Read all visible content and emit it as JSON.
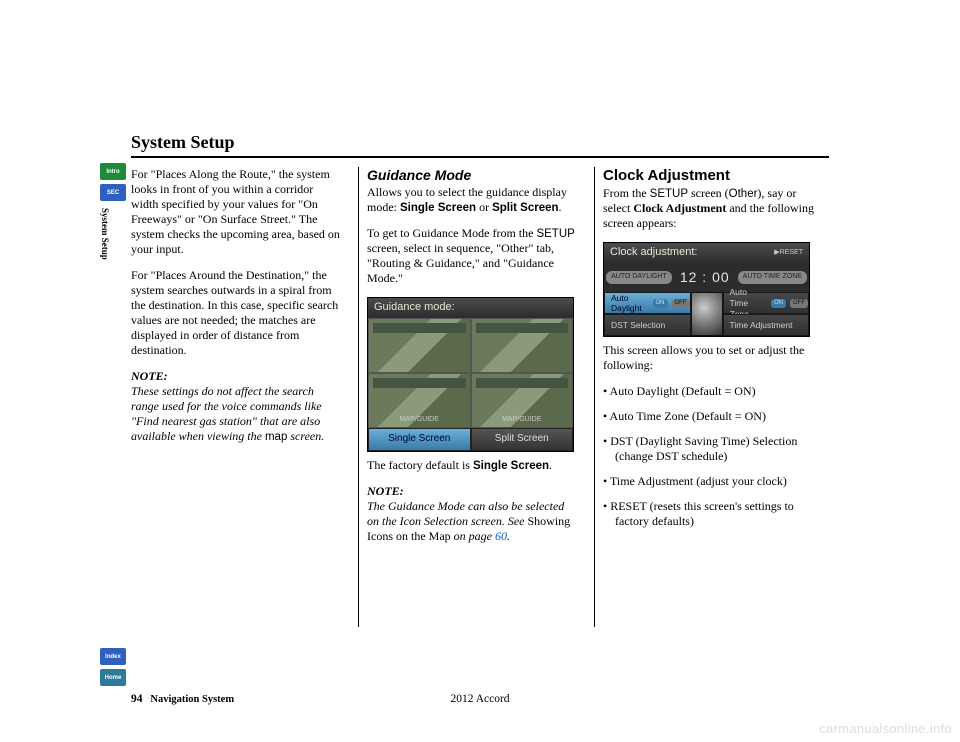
{
  "page": {
    "title": "System Setup",
    "number": "94",
    "footer_label": "Navigation System",
    "model": "2012 Accord",
    "watermark": "carmanualsonline.info"
  },
  "sidetabs": {
    "top": [
      {
        "label": "Intro",
        "bg": "#1f8a3a"
      },
      {
        "label": "SEC",
        "bg": "#2f5fbf"
      }
    ],
    "vertical_label": "System Setup",
    "bottom": [
      {
        "label": "Index",
        "bg": "#2f5fbf"
      },
      {
        "label": "Home",
        "bg": "#2f7a9a"
      }
    ]
  },
  "col1": {
    "p1": "For \"Places Along the Route,\" the system looks in front of you within a corridor width specified by your values for \"On Freeways\" or \"On Surface Street.\" The system checks the upcoming area, based on your input.",
    "p2": "For \"Places Around the Destination,\" the system searches outwards in a spiral from the destination. In this case, specific search values are not needed; the matches are displayed in order of distance from destination.",
    "note_label": "NOTE:",
    "note_body_1": "These settings do not affect the search range used for the voice commands like \"Find nearest gas station\" that are also available when viewing the ",
    "note_body_map": "map",
    "note_body_2": " screen."
  },
  "col2": {
    "heading": "Guidance Mode",
    "p1a": "Allows you to select the guidance display mode: ",
    "b1": "Single Screen",
    "p1b": " or ",
    "b2": "Split Screen",
    "p1c": ".",
    "p2a": "To get to Guidance Mode from the ",
    "sans1": "SETUP",
    "p2b": " screen, select in sequence, \"Other\" tab, \"Routing & Guidance,\" and \"Guidance Mode.\"",
    "shot": {
      "title": "Guidance mode:",
      "thumb_label": "MAP/GUIDE",
      "btn1": "Single Screen",
      "btn2": "Split Screen"
    },
    "caption_a": "The factory default is ",
    "caption_b": "Single Screen",
    "caption_c": ".",
    "note_label": "NOTE:",
    "note_body_1": "The Guidance Mode can also be selected on the Icon Selection screen. See ",
    "note_ref": "Showing Icons on the Map",
    "note_body_2": " on page ",
    "note_link": "60",
    "note_body_3": "."
  },
  "col3": {
    "heading": "Clock Adjustment",
    "p1a": "From the ",
    "sans1": "SETUP",
    "p1b": " screen (",
    "sans2": "Other",
    "p1c": "), say or select ",
    "b1": "Clock Adjustment",
    "p1d": " and the following screen appears:",
    "shot": {
      "title": "Clock adjustment:",
      "reset": "▶RESET",
      "auto_daylight_pill": "AUTO DAYLIGHT",
      "time": "12 : 00",
      "auto_timezone_pill": "AUTO TIME ZONE",
      "c1": "Auto Daylight",
      "c1_on": "ON",
      "c1_off": "OFF",
      "c2": "Auto Time Zone",
      "c2_on": "ON",
      "c2_off": "OFF",
      "c3": "DST Selection",
      "c4": "Time Adjustment"
    },
    "p2": "This screen allows you to set or adjust the following:",
    "bullets": [
      "Auto Daylight (Default = ON)",
      "Auto Time Zone (Default = ON)",
      "DST (Daylight Saving Time) Selection (change DST schedule)",
      "Time Adjustment (adjust your clock)",
      "RESET (resets this screen's settings to factory defaults)"
    ]
  },
  "colors": {
    "link": "#0066cc"
  }
}
